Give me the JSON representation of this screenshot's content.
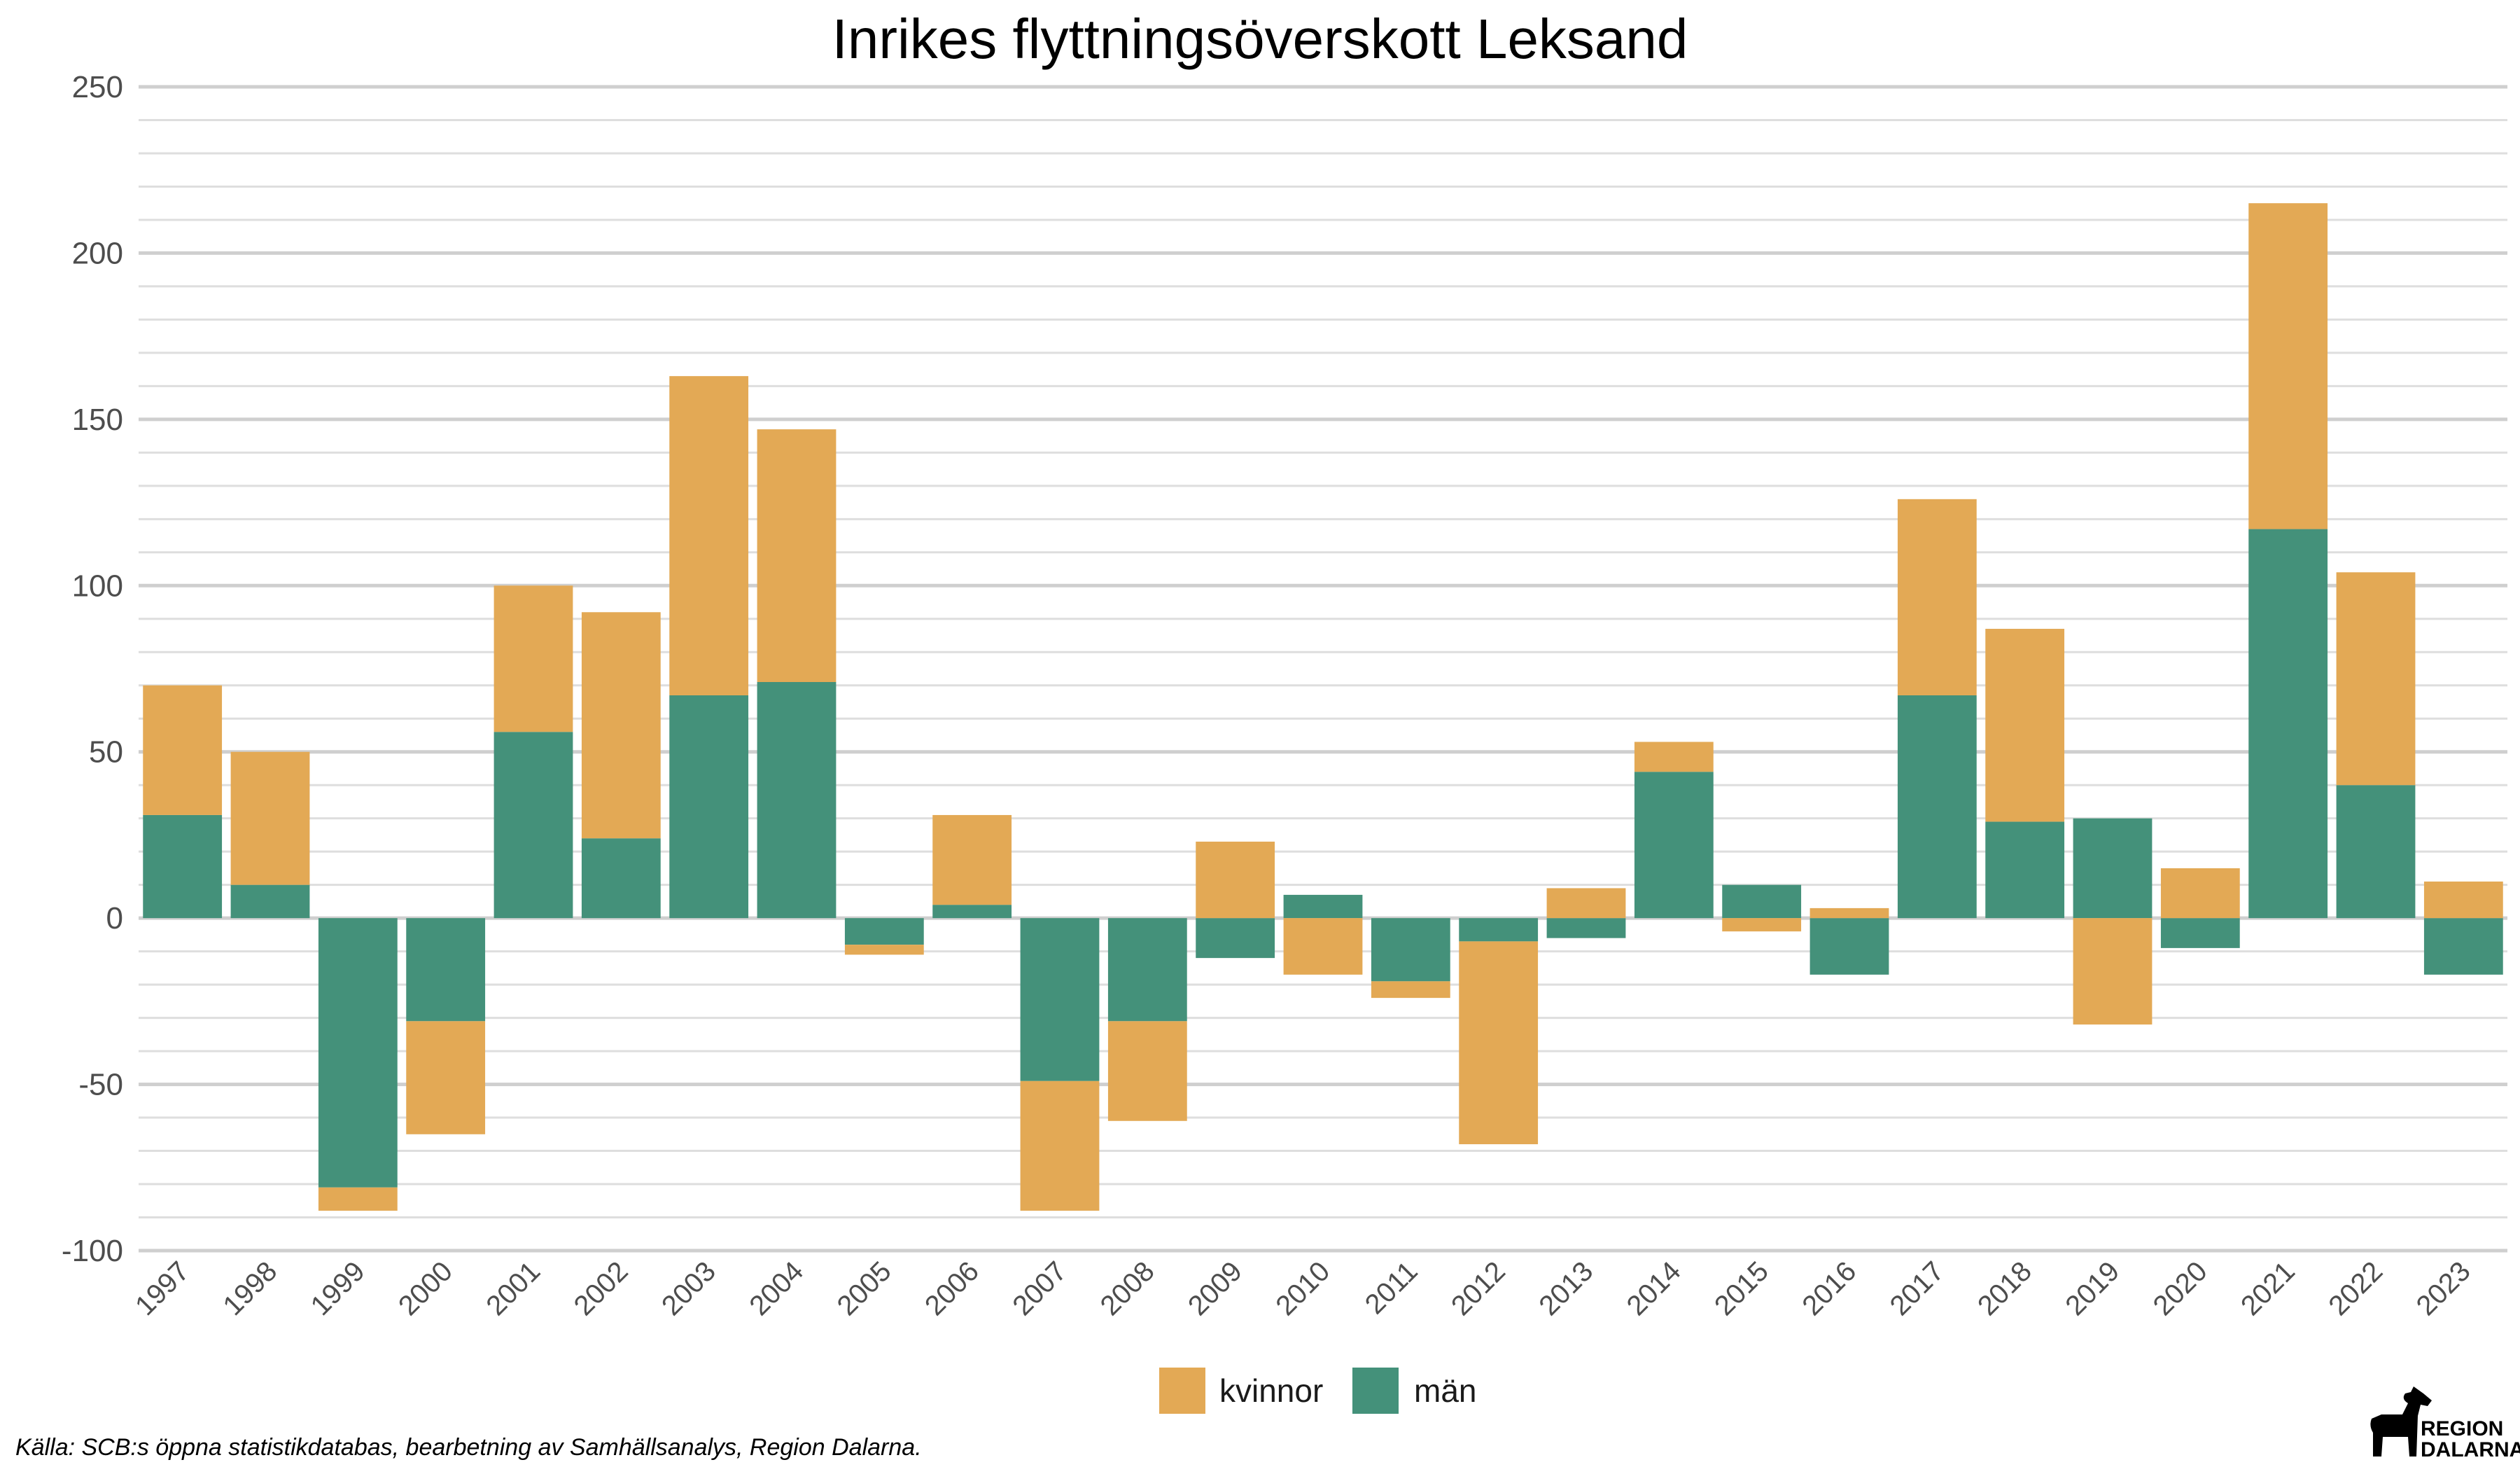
{
  "chart_data": {
    "type": "bar",
    "stacked": true,
    "title": "Inrikes flyttningsöverskott Leksand",
    "xlabel": "",
    "ylabel": "",
    "ylim": [
      -100,
      250
    ],
    "yticks": [
      -100,
      -50,
      0,
      50,
      100,
      150,
      200,
      250
    ],
    "grid": true,
    "legend_position": "bottom",
    "categories": [
      "1997",
      "1998",
      "1999",
      "2000",
      "2001",
      "2002",
      "2003",
      "2004",
      "2005",
      "2006",
      "2007",
      "2008",
      "2009",
      "2010",
      "2011",
      "2012",
      "2013",
      "2014",
      "2015",
      "2016",
      "2017",
      "2018",
      "2019",
      "2020",
      "2021",
      "2022",
      "2023"
    ],
    "series": [
      {
        "name": "kvinnor",
        "color": "#E3A955",
        "values": [
          39,
          40,
          -7,
          -34,
          44,
          68,
          96,
          76,
          -3,
          27,
          -39,
          -30,
          23,
          -17,
          -5,
          -61,
          9,
          9,
          -4,
          3,
          59,
          58,
          -32,
          15,
          98,
          64,
          11
        ]
      },
      {
        "name": "män",
        "color": "#44917A",
        "values": [
          31,
          10,
          -81,
          -31,
          56,
          24,
          67,
          71,
          -8,
          4,
          -49,
          -31,
          -12,
          7,
          -19,
          -7,
          -6,
          44,
          10,
          -17,
          67,
          29,
          30,
          -9,
          117,
          40,
          -17
        ]
      }
    ]
  },
  "legend": {
    "items": [
      {
        "label": "kvinnor",
        "color": "#E3A955"
      },
      {
        "label": "män",
        "color": "#44917A"
      }
    ]
  },
  "caption": "Källa: SCB:s öppna statistikdatabas, bearbetning av Samhällsanalys, Region Dalarna.",
  "logo": {
    "line1": "REGION",
    "line2": "DALARNA",
    "icon": "dala-horse-icon"
  }
}
